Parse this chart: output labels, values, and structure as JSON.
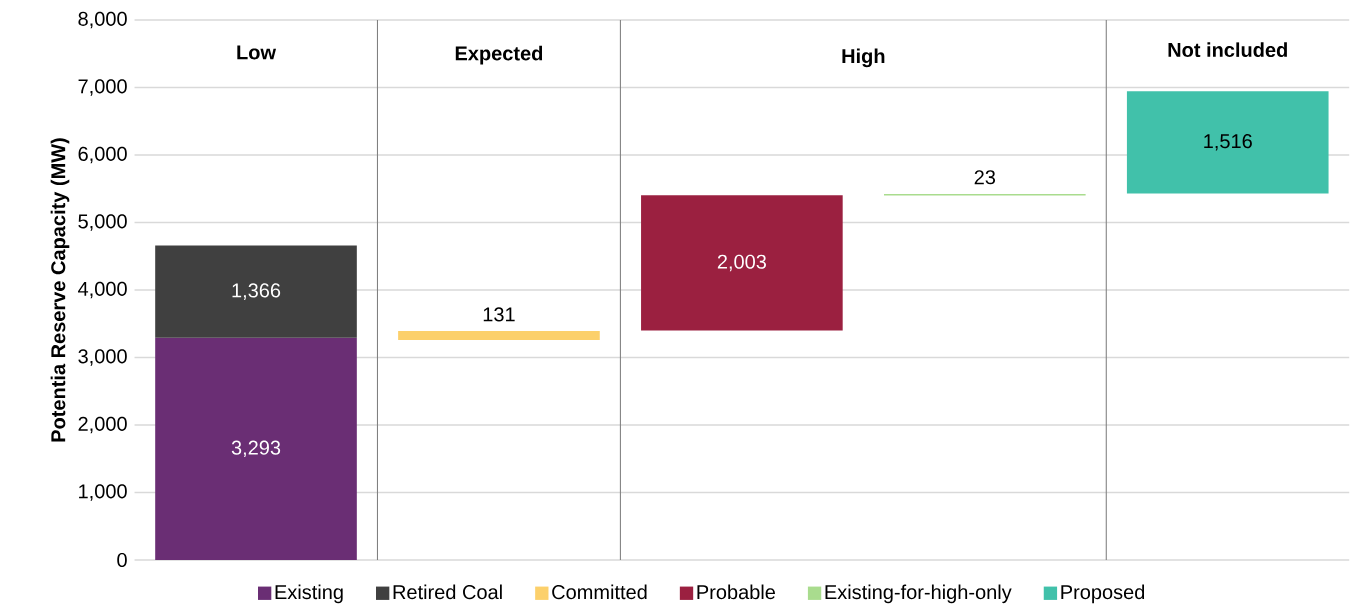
{
  "chart_data": {
    "type": "bar",
    "ylabel": "Potentia Reserve Capacity (MW)",
    "categories": [
      null,
      null,
      null,
      null,
      null
    ],
    "series": [
      {
        "name": "Existing",
        "color": "#6a2e74",
        "values": [
          3293,
          null,
          null,
          null,
          null
        ],
        "base": [
          0,
          null,
          null,
          null,
          null
        ],
        "value_labels": [
          "3,293",
          null,
          null,
          null,
          null
        ]
      },
      {
        "name": "Retired Coal",
        "color": "#404040",
        "values": [
          1366,
          null,
          null,
          null,
          null
        ],
        "base": [
          3293,
          null,
          null,
          null,
          null
        ],
        "value_labels": [
          "1,366",
          null,
          null,
          null,
          null
        ]
      },
      {
        "name": "Committed",
        "color": "#fcd06b",
        "values": [
          null,
          131,
          null,
          null,
          null
        ],
        "base": [
          null,
          3260,
          null,
          null,
          null
        ],
        "value_labels": [
          null,
          "131",
          null,
          null,
          null
        ]
      },
      {
        "name": "Probable",
        "color": "#9b2040",
        "values": [
          null,
          null,
          2003,
          null,
          null
        ],
        "base": [
          null,
          null,
          3400,
          null,
          null
        ],
        "value_labels": [
          null,
          null,
          "2,003",
          null,
          null
        ]
      },
      {
        "name": "Existing-for-high-only",
        "color": "#a9dc8e",
        "values": [
          null,
          null,
          null,
          23,
          null
        ],
        "base": [
          null,
          null,
          null,
          5400,
          null
        ],
        "value_labels": [
          null,
          null,
          null,
          "23",
          null
        ]
      },
      {
        "name": "Proposed",
        "color": "#41c1aa",
        "values": [
          null,
          null,
          null,
          null,
          1516
        ],
        "base": [
          null,
          null,
          null,
          null,
          5430
        ],
        "value_labels": [
          null,
          null,
          null,
          null,
          "1,516"
        ]
      }
    ],
    "ylim": [
      0,
      8000
    ],
    "yticks": [
      0,
      {
        "value": 1000,
        "label": "1,000"
      },
      {
        "value": 2000,
        "label": "2,000"
      },
      {
        "value": 3000,
        "label": "3,000"
      },
      {
        "value": 4000,
        "label": "4,000"
      },
      {
        "value": 5000,
        "label": "5,000"
      },
      {
        "value": 6000,
        "label": "6,000"
      },
      {
        "value": 7000,
        "label": "7,000"
      },
      {
        "value": 8000,
        "label": "8,000"
      }
    ],
    "grid": "y",
    "legend": "bottom",
    "annotations": [
      "Low",
      "Expected",
      "High",
      "Not included"
    ]
  }
}
